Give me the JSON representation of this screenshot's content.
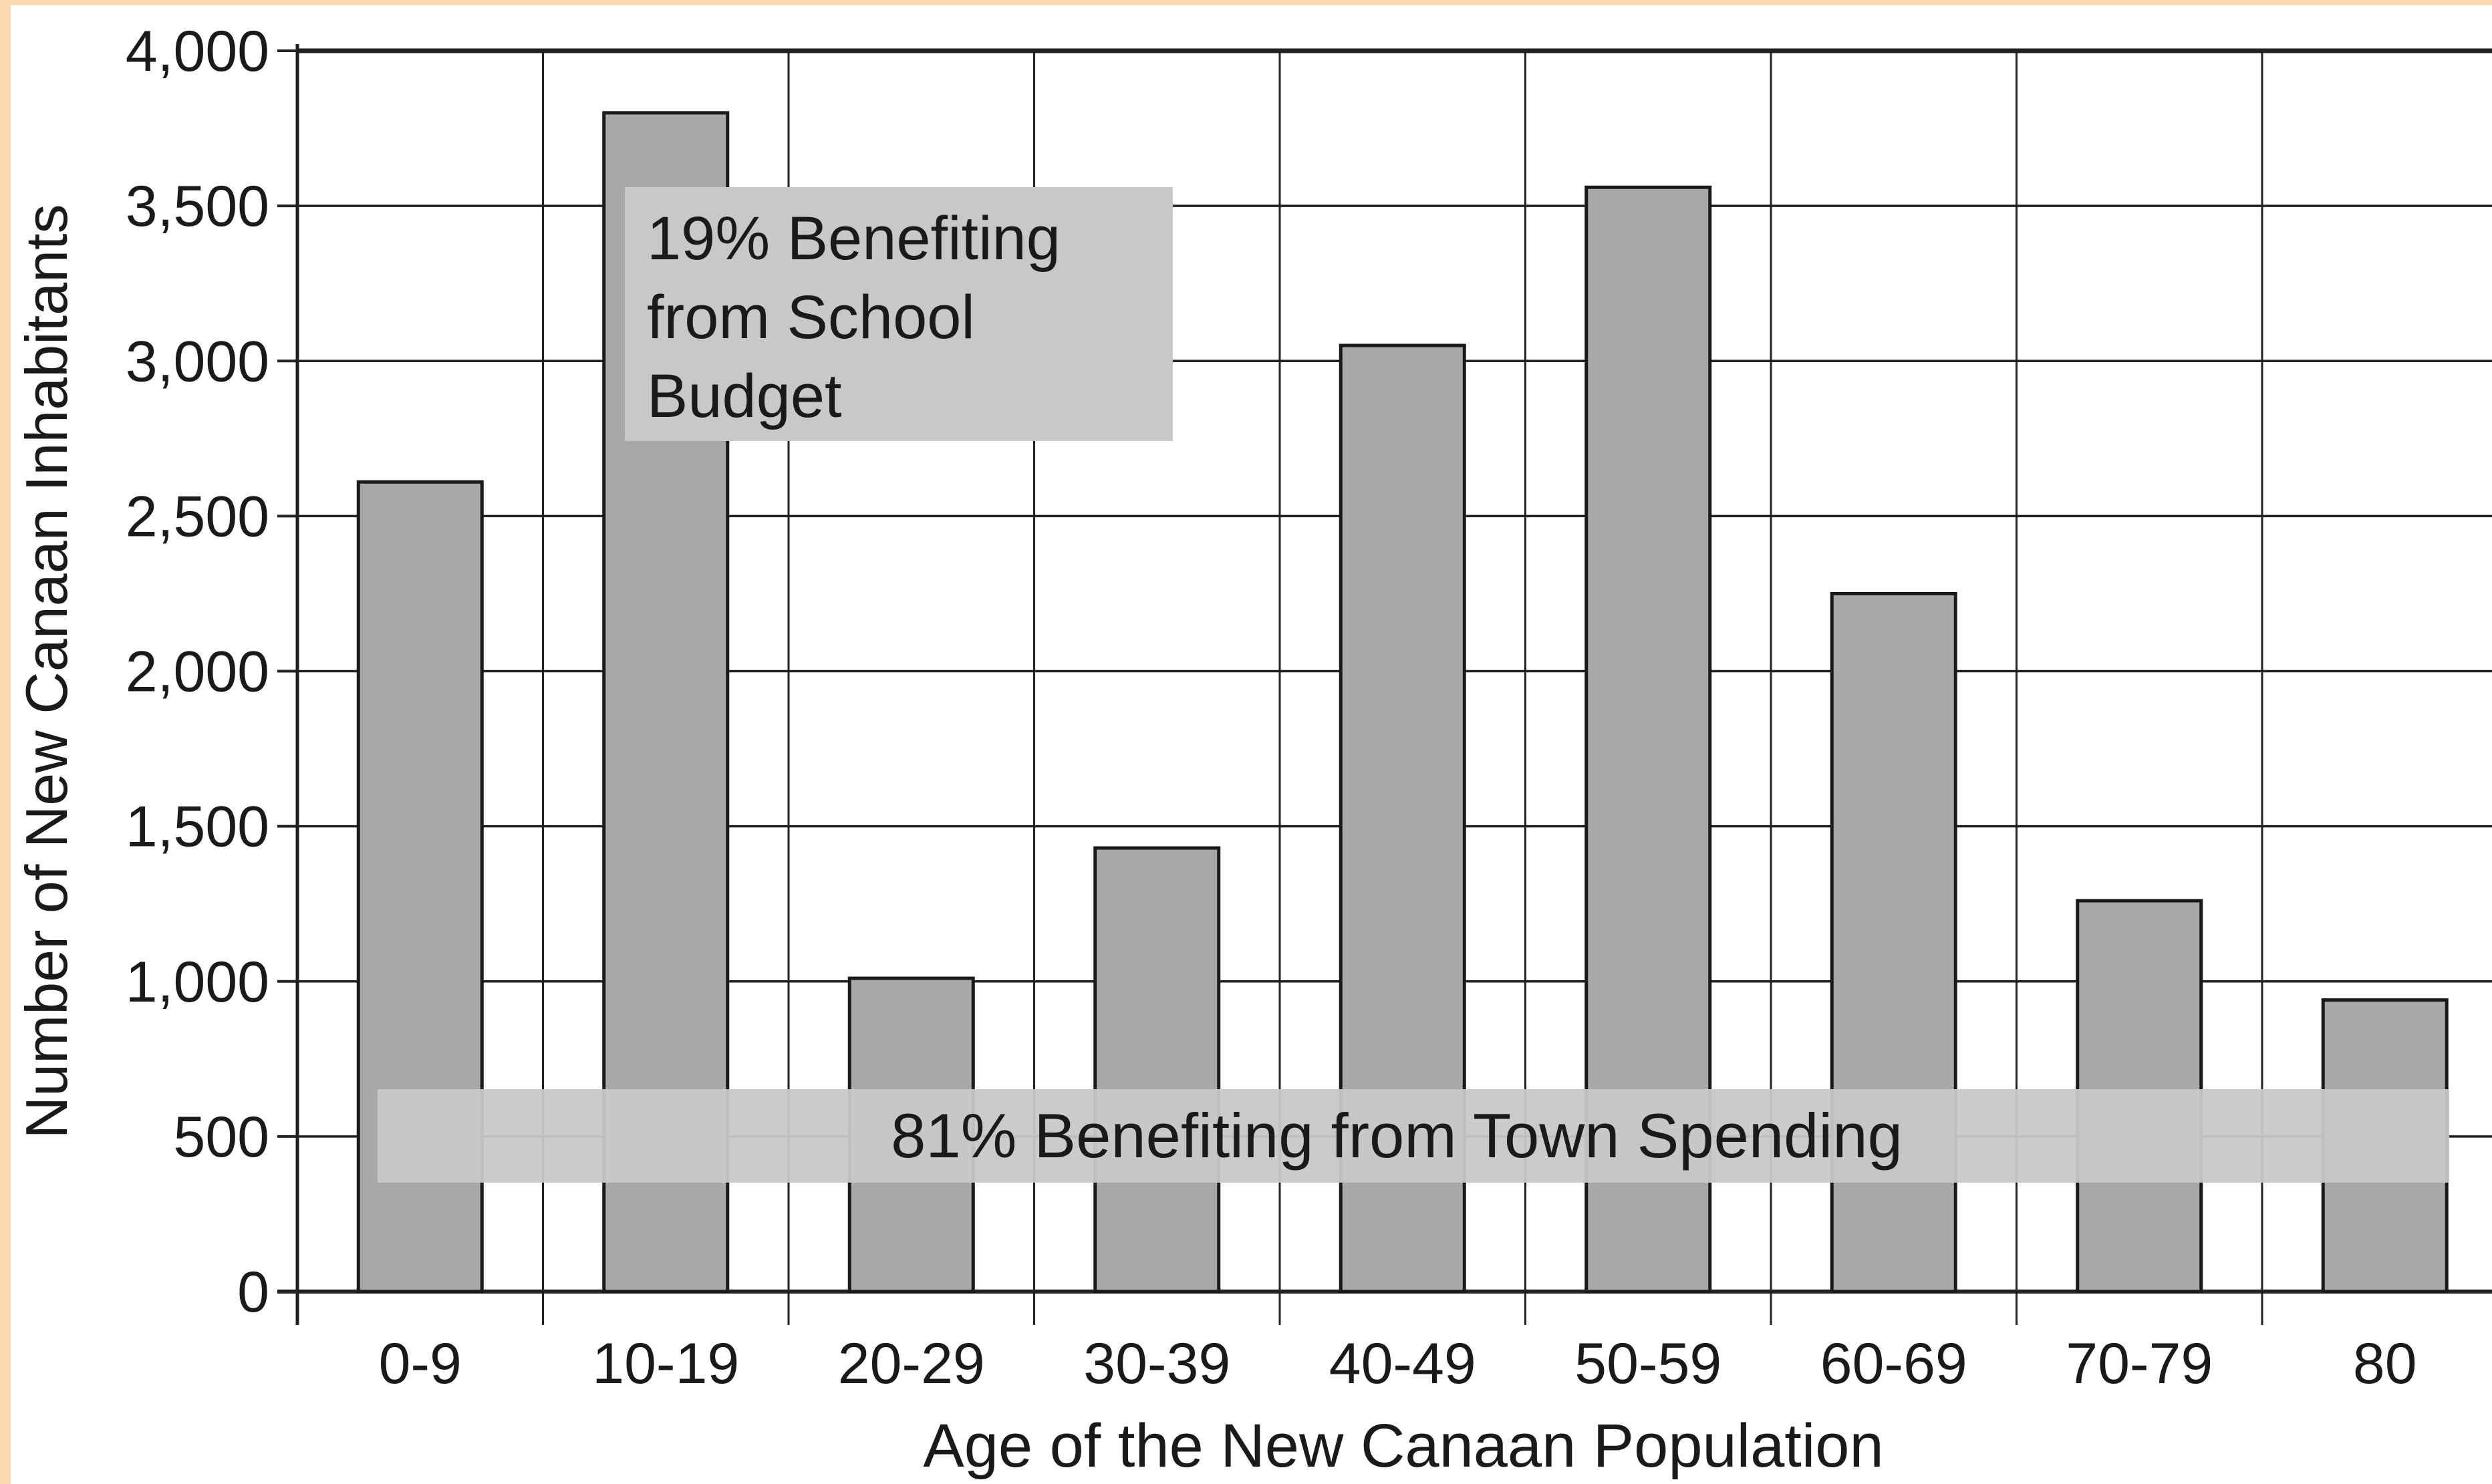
{
  "chart_data": {
    "type": "bar",
    "categories": [
      "0-9",
      "10-19",
      "20-29",
      "30-39",
      "40-49",
      "50-59",
      "60-69",
      "70-79",
      "80"
    ],
    "values": [
      2610,
      3800,
      1010,
      1430,
      3050,
      3560,
      2250,
      1260,
      940
    ],
    "xlabel": "Age of the New Canaan Population",
    "ylabel": "Number of New Canaan Inhabitants",
    "ylim": [
      0,
      4000
    ],
    "yticks": [
      "0",
      "500",
      "1,000",
      "1,500",
      "2,000",
      "2,500",
      "3,000",
      "3,500",
      "4,000"
    ],
    "grid": true,
    "annotations": {
      "school": [
        "19% Benefiting",
        "from School",
        "Budget"
      ],
      "town": "81% Benefiting from Town Spending"
    }
  },
  "colors": {
    "background": "#ffffff",
    "border": "#fbd9b3",
    "bar_fill": "#a8a8a8",
    "bar_stroke": "#1a1a1a",
    "grid": "#222222",
    "annotation_fill": "#c8c8c8",
    "text": "#1a1a1a"
  }
}
